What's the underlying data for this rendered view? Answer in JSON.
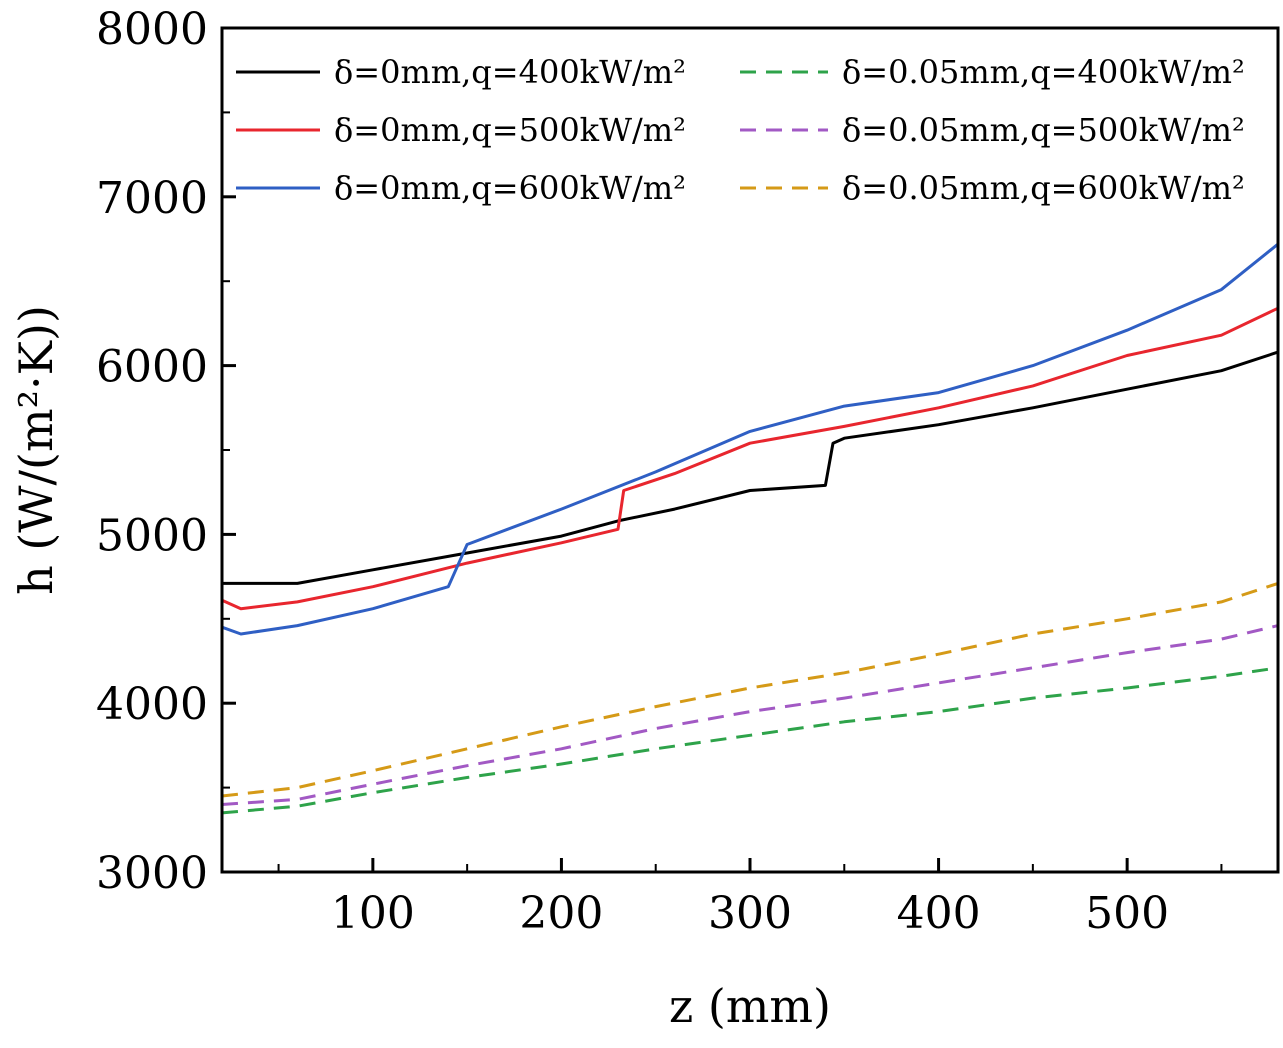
{
  "chart_data": {
    "type": "line",
    "title": "",
    "xlabel": "z (mm)",
    "ylabel": "h (W/(m²·K))",
    "xlim": [
      20,
      580
    ],
    "ylim": [
      3000,
      8000
    ],
    "x_ticks": [
      100,
      200,
      300,
      400,
      500
    ],
    "y_ticks": [
      3000,
      4000,
      5000,
      6000,
      7000,
      8000
    ],
    "x_tick_labels": [
      "100",
      "200",
      "300",
      "400",
      "500"
    ],
    "y_tick_labels": [
      "3000",
      "4000",
      "5000",
      "6000",
      "7000",
      "8000"
    ],
    "grid": false,
    "legend_position": "top",
    "series": [
      {
        "name": "δ=0mm,q=400kW/m²",
        "color": "#000000",
        "dash": "solid",
        "points": [
          [
            20,
            4710
          ],
          [
            60,
            4710
          ],
          [
            100,
            4790
          ],
          [
            150,
            4890
          ],
          [
            200,
            4990
          ],
          [
            230,
            5080
          ],
          [
            260,
            5150
          ],
          [
            300,
            5260
          ],
          [
            340,
            5290
          ],
          [
            344,
            5540
          ],
          [
            350,
            5570
          ],
          [
            400,
            5650
          ],
          [
            450,
            5750
          ],
          [
            500,
            5860
          ],
          [
            550,
            5970
          ],
          [
            580,
            6080
          ]
        ]
      },
      {
        "name": "δ=0mm,q=500kW/m²",
        "color": "#e8262e",
        "dash": "solid",
        "points": [
          [
            20,
            4610
          ],
          [
            30,
            4560
          ],
          [
            60,
            4600
          ],
          [
            100,
            4690
          ],
          [
            150,
            4830
          ],
          [
            200,
            4950
          ],
          [
            230,
            5030
          ],
          [
            233,
            5260
          ],
          [
            260,
            5360
          ],
          [
            300,
            5540
          ],
          [
            350,
            5640
          ],
          [
            400,
            5750
          ],
          [
            450,
            5880
          ],
          [
            500,
            6060
          ],
          [
            550,
            6180
          ],
          [
            580,
            6340
          ]
        ]
      },
      {
        "name": "δ=0mm,q=600kW/m²",
        "color": "#2f5fc4",
        "dash": "solid",
        "points": [
          [
            20,
            4450
          ],
          [
            30,
            4410
          ],
          [
            60,
            4460
          ],
          [
            100,
            4560
          ],
          [
            140,
            4690
          ],
          [
            150,
            4940
          ],
          [
            200,
            5150
          ],
          [
            250,
            5370
          ],
          [
            300,
            5610
          ],
          [
            350,
            5760
          ],
          [
            400,
            5840
          ],
          [
            450,
            6000
          ],
          [
            500,
            6210
          ],
          [
            550,
            6450
          ],
          [
            580,
            6720
          ]
        ]
      },
      {
        "name": "δ=0.05mm,q=400kW/m²",
        "color": "#2ea34a",
        "dash": "dashed",
        "points": [
          [
            20,
            3350
          ],
          [
            60,
            3390
          ],
          [
            100,
            3470
          ],
          [
            150,
            3560
          ],
          [
            200,
            3640
          ],
          [
            250,
            3730
          ],
          [
            300,
            3810
          ],
          [
            350,
            3890
          ],
          [
            400,
            3950
          ],
          [
            450,
            4030
          ],
          [
            500,
            4090
          ],
          [
            550,
            4160
          ],
          [
            580,
            4210
          ]
        ]
      },
      {
        "name": "δ=0.05mm,q=500kW/m²",
        "color": "#a259c4",
        "dash": "dashed",
        "points": [
          [
            20,
            3400
          ],
          [
            60,
            3430
          ],
          [
            100,
            3520
          ],
          [
            150,
            3630
          ],
          [
            200,
            3730
          ],
          [
            250,
            3850
          ],
          [
            300,
            3950
          ],
          [
            350,
            4030
          ],
          [
            400,
            4120
          ],
          [
            450,
            4210
          ],
          [
            500,
            4300
          ],
          [
            550,
            4380
          ],
          [
            580,
            4460
          ]
        ]
      },
      {
        "name": "δ=0.05mm,q=600kW/m²",
        "color": "#d59a17",
        "dash": "dashed",
        "points": [
          [
            20,
            3450
          ],
          [
            60,
            3500
          ],
          [
            100,
            3600
          ],
          [
            150,
            3730
          ],
          [
            200,
            3860
          ],
          [
            250,
            3980
          ],
          [
            300,
            4090
          ],
          [
            350,
            4180
          ],
          [
            400,
            4290
          ],
          [
            450,
            4410
          ],
          [
            500,
            4500
          ],
          [
            550,
            4600
          ],
          [
            580,
            4710
          ]
        ]
      }
    ]
  }
}
